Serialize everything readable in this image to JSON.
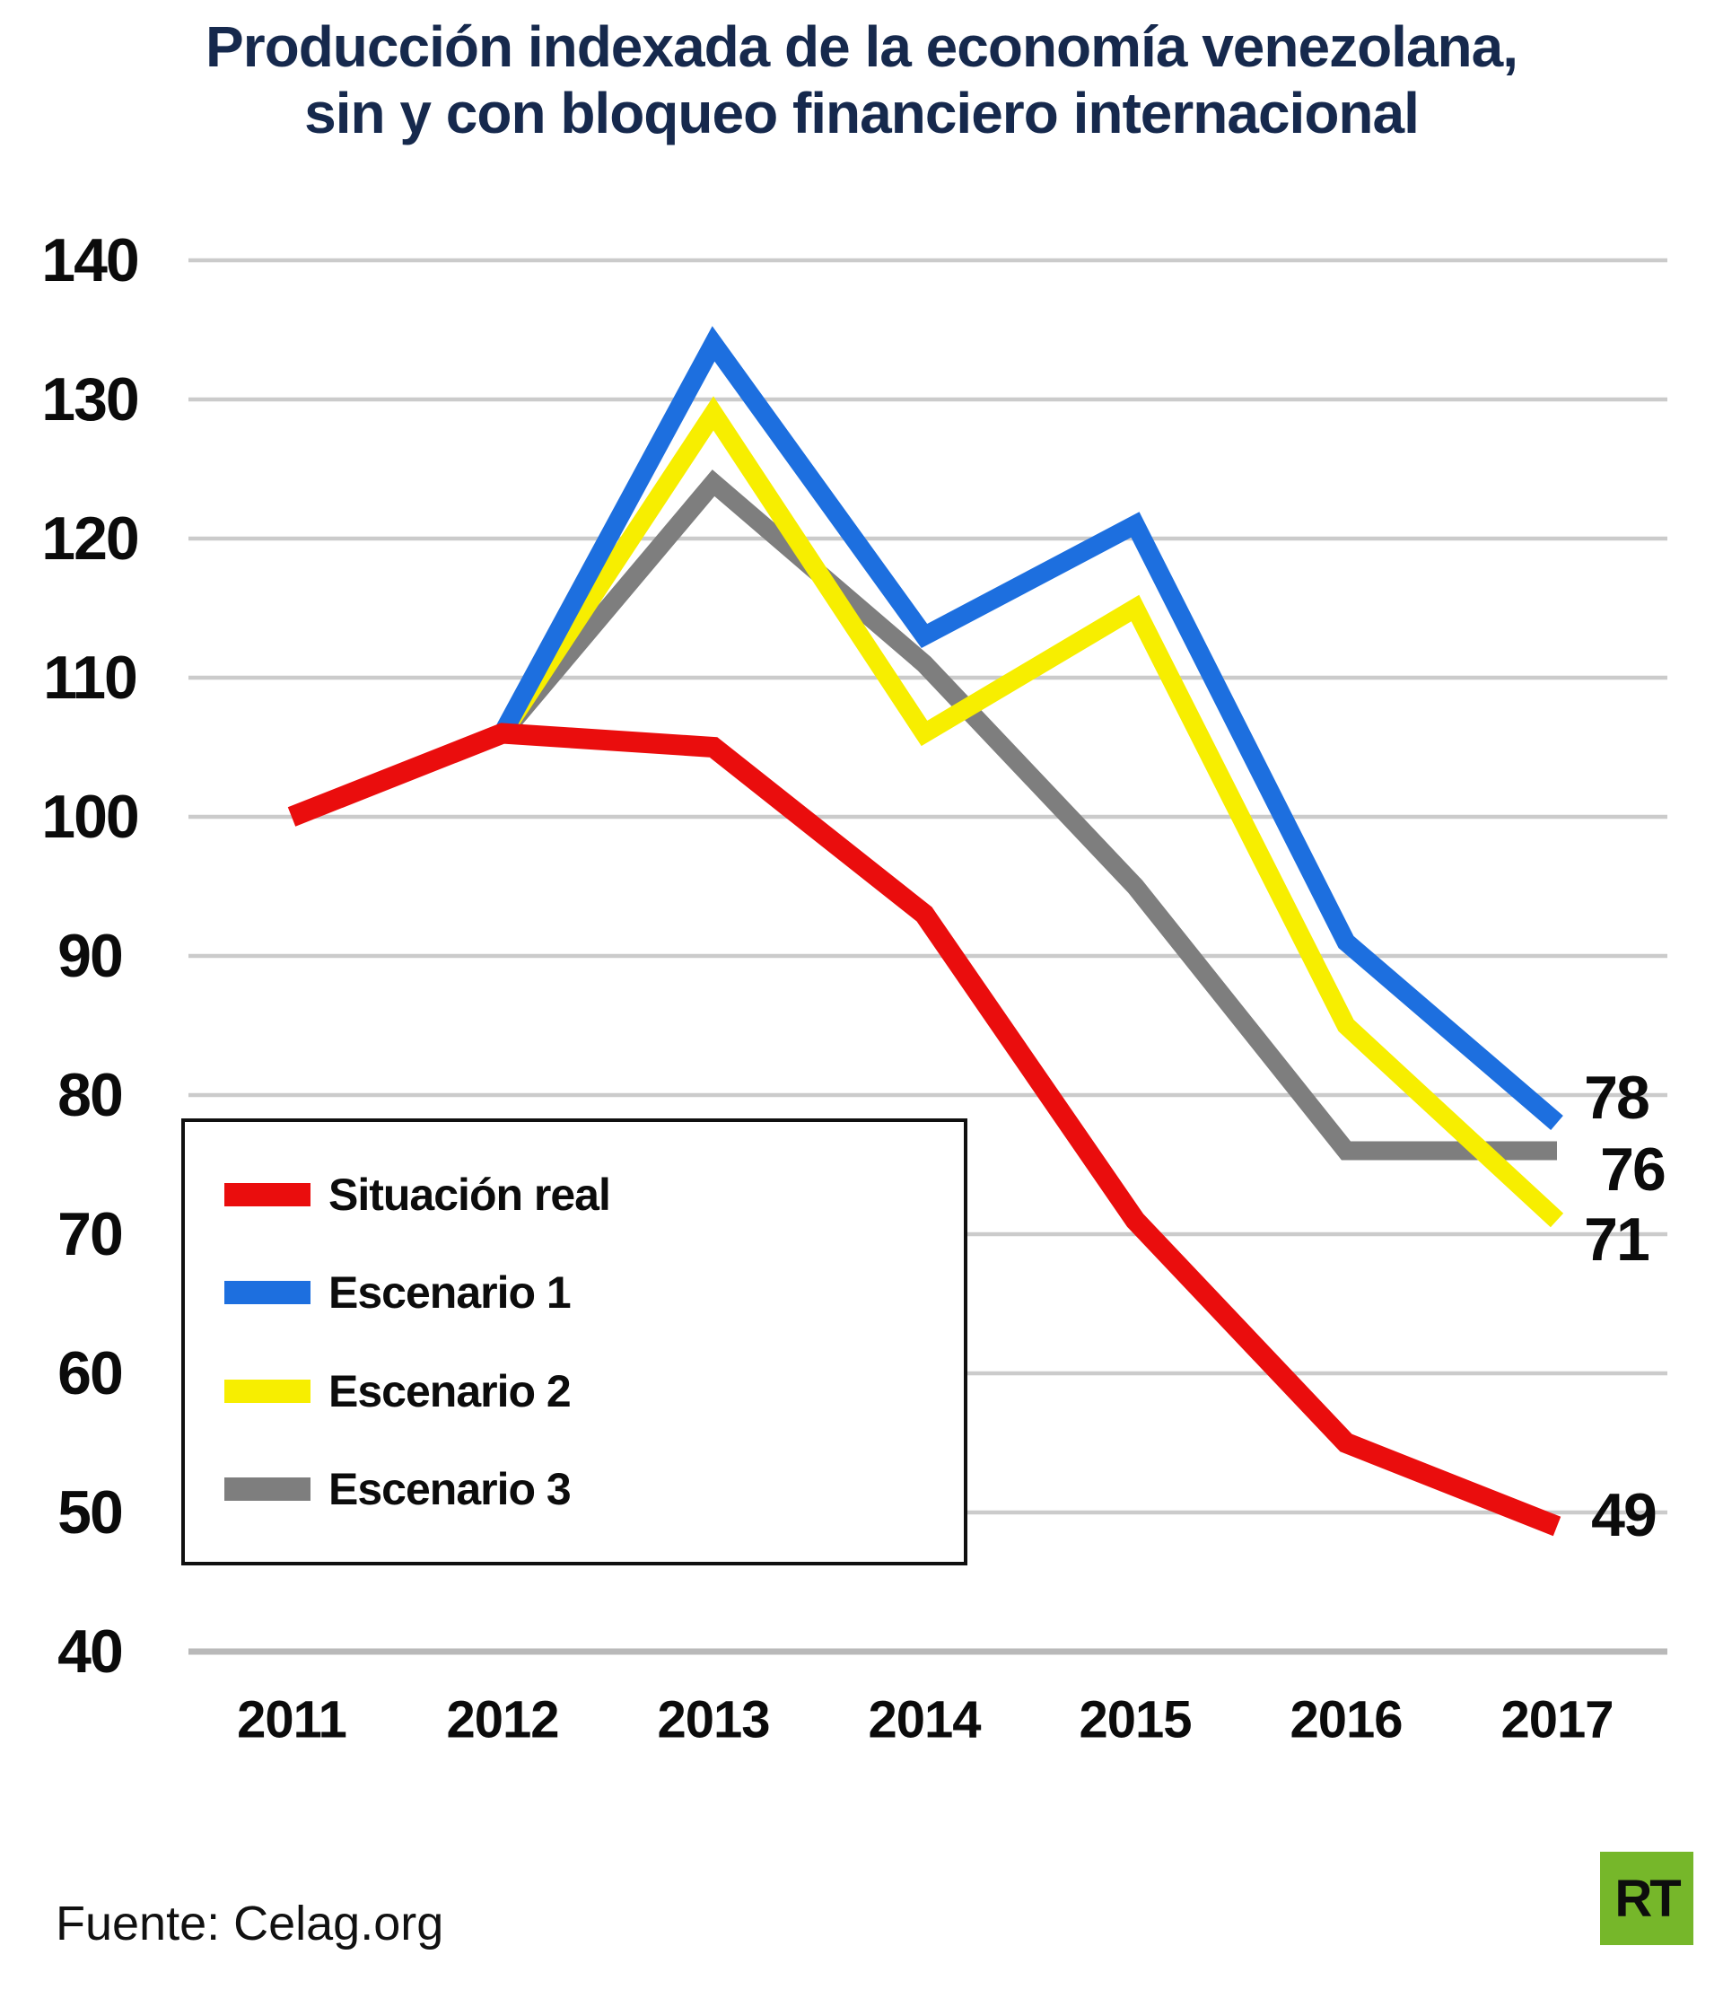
{
  "title": {
    "line1": "Producción indexada de la economía venezolana,",
    "line2": "sin y con bloqueo financiero internacional"
  },
  "source": "Fuente: Celag.org",
  "logo": {
    "text": "RT",
    "bg_color": "#76b72a",
    "text_color": "#0d0d0d"
  },
  "colors": {
    "title_navy": "#16294d",
    "situacion_real_red": "#ea0d0d",
    "escenario1_blue": "#1d6fdf",
    "escenario2_yellow": "#f7ee00",
    "escenario3_gray": "#7e7e7e",
    "gridline_gray": "#cbcbcb",
    "axis_baseline_gray": "#b9b9b9",
    "text_black": "#0b0b0b"
  },
  "chart_data": {
    "type": "line",
    "title": "Producción indexada de la economía venezolana, sin y con bloqueo financiero internacional",
    "categories": [
      "2011",
      "2012",
      "2013",
      "2014",
      "2015",
      "2016",
      "2017"
    ],
    "series": [
      {
        "name": "Situación real",
        "color": "#ea0d0d",
        "values": [
          100,
          106,
          105,
          93,
          71,
          55,
          49
        ]
      },
      {
        "name": "Escenario 1",
        "color": "#1d6fdf",
        "values": [
          null,
          106,
          134,
          113,
          121,
          91,
          78
        ]
      },
      {
        "name": "Escenario 2",
        "color": "#f7ee00",
        "values": [
          null,
          106,
          129,
          106,
          115,
          85,
          71
        ]
      },
      {
        "name": "Escenario 3",
        "color": "#7e7e7e",
        "values": [
          null,
          106,
          124,
          111,
          95,
          76,
          76
        ]
      }
    ],
    "end_labels": [
      {
        "series": "Escenario 1",
        "text": "78",
        "value": 78
      },
      {
        "series": "Escenario 3",
        "text": "76",
        "value": 76
      },
      {
        "series": "Escenario 2",
        "text": "71",
        "value": 71
      },
      {
        "series": "Situación real",
        "text": "49",
        "value": 49
      }
    ],
    "yticks": [
      140,
      130,
      120,
      110,
      100,
      90,
      80,
      70,
      60,
      50,
      40
    ],
    "ylim": [
      40,
      140
    ],
    "xlabel": "",
    "ylabel": "",
    "grid": true,
    "legend_position": "inside bottom-left"
  }
}
